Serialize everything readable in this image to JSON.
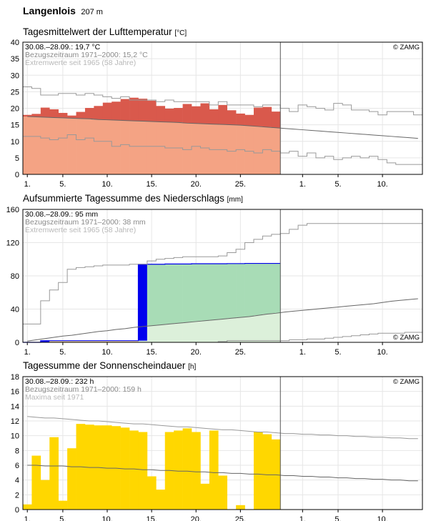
{
  "station": {
    "name": "Langenlois",
    "elevation": "207 m"
  },
  "attribution": "© ZAMG",
  "colors": {
    "temp_above_dark": "#d9594c",
    "temp_base_light": "#f4a384",
    "precip_bar": "#0000ee",
    "precip_green_dark": "#a8dcb6",
    "precip_green_light": "#dcf0da",
    "precip_yellow_light": "#faeaae",
    "precip_orange": "#f8b84a",
    "sun_bar": "#ffd700",
    "ref_line": "#666666",
    "extreme_line": "#999999"
  },
  "chart_data": [
    {
      "id": "temperature",
      "type": "area",
      "title": "Tagesmittelwert der Lufttemperatur",
      "unit": "[°C]",
      "info": [
        "30.08.–28.09.: 19,7 °C",
        "Bezugszeitraum 1971–2000: 15,2 °C",
        "Extremwerte seit 1965 (58 Jahre)"
      ],
      "ylim": [
        0,
        40
      ],
      "yticks": [
        0,
        5,
        10,
        15,
        20,
        25,
        30,
        35,
        40
      ],
      "xticks": [
        "1.",
        "5.",
        "10.",
        "15.",
        "20.",
        "25.",
        "1.",
        "5.",
        "10."
      ],
      "x_tick_days": [
        1,
        5,
        10,
        15,
        20,
        25,
        32,
        36,
        41
      ],
      "today_day": 29,
      "days_total": 45,
      "daily_mean": [
        18.0,
        18.3,
        20.2,
        19.7,
        18.6,
        17.8,
        18.9,
        20.1,
        20.7,
        21.7,
        22.0,
        22.8,
        23.2,
        22.9,
        22.3,
        20.7,
        19.9,
        20.1,
        21.3,
        20.6,
        21.5,
        19.7,
        21.0,
        19.4,
        18.4,
        18.0,
        20.2,
        20.4,
        19.0
      ],
      "reference_mean": [
        17.5,
        17.4,
        17.3,
        17.2,
        17.1,
        17.0,
        16.9,
        16.8,
        16.6,
        16.5,
        16.4,
        16.3,
        16.2,
        16.1,
        16.0,
        15.9,
        15.8,
        15.7,
        15.5,
        15.4,
        15.3,
        15.2,
        15.1,
        15.0,
        14.9,
        14.7,
        14.5,
        14.3,
        14.1,
        13.9,
        13.7,
        13.5,
        13.3,
        13.1,
        12.9,
        12.7,
        12.5,
        12.3,
        12.1,
        11.9,
        11.7,
        11.5,
        11.3,
        11.1,
        10.9
      ],
      "max_extreme": [
        26.5,
        26.0,
        24.0,
        24.0,
        24.5,
        24.5,
        24.0,
        24.5,
        24.0,
        23.5,
        23.0,
        23.5,
        22.5,
        22.5,
        22.5,
        22.0,
        22.5,
        22.0,
        22.0,
        22.0,
        22.0,
        21.0,
        22.0,
        21.0,
        21.0,
        21.0,
        20.5,
        21.0,
        21.0,
        20.0,
        19.0,
        21.0,
        20.5,
        20.0,
        19.5,
        21.5,
        21.0,
        19.5,
        19.5,
        19.0,
        18.0,
        19.0,
        19.0,
        19.0,
        18.0
      ],
      "min_extreme": [
        11.5,
        11.5,
        11.0,
        10.5,
        11.0,
        12.0,
        10.5,
        11.0,
        10.0,
        10.0,
        8.5,
        9.0,
        8.5,
        8.5,
        8.5,
        8.5,
        8.0,
        8.0,
        7.5,
        8.5,
        8.0,
        7.5,
        7.5,
        7.0,
        7.5,
        7.0,
        6.5,
        7.5,
        7.0,
        6.5,
        7.0,
        5.5,
        6.5,
        5.0,
        5.5,
        4.5,
        5.0,
        5.5,
        5.0,
        5.5,
        4.5,
        3.5,
        3.0,
        3.0,
        3.0
      ]
    },
    {
      "id": "precipitation",
      "type": "area",
      "title": "Aufsummierte Tagessumme des Niederschlags",
      "unit": "[mm]",
      "info": [
        "30.08.–28.09.: 95 mm",
        "Bezugszeitraum 1971–2000: 38 mm",
        "Extremwerte seit 1965 (58 Jahre)"
      ],
      "ylim": [
        0,
        160
      ],
      "yticks": [
        0,
        40,
        80,
        120,
        160
      ],
      "xticks": [
        "1.",
        "5.",
        "10.",
        "15.",
        "20.",
        "25.",
        "1.",
        "5.",
        "10."
      ],
      "x_tick_days": [
        1,
        5,
        10,
        15,
        20,
        25,
        32,
        36,
        41
      ],
      "today_day": 29,
      "days_total": 45,
      "cumulative_sum": [
        0,
        0,
        2.0,
        2.0,
        2.0,
        2.0,
        2.0,
        2.0,
        2.0,
        2.0,
        2.0,
        2.0,
        2.0,
        94.0,
        94.0,
        94.0,
        94.3,
        94.3,
        94.3,
        94.6,
        94.6,
        94.6,
        94.6,
        94.8,
        94.8,
        95.0,
        95.0,
        95.0,
        95.0
      ],
      "reference_sum": [
        1.5,
        3.0,
        4.5,
        6.0,
        7.5,
        8.5,
        10.0,
        11.5,
        13.0,
        14.0,
        15.5,
        16.5,
        18.0,
        19.0,
        20.0,
        21.0,
        22.0,
        23.0,
        24.0,
        25.0,
        26.0,
        27.0,
        28.0,
        29.0,
        30.0,
        31.0,
        32.5,
        34.0,
        35.0,
        36.5,
        37.5,
        38.5,
        39.5,
        40.5,
        41.5,
        42.5,
        43.5,
        44.5,
        45.5,
        46.5,
        48.0,
        49.5,
        50.5,
        51.5,
        52.5
      ],
      "max_extreme": [
        22,
        22,
        50,
        63,
        72,
        88,
        90,
        91,
        92,
        93,
        93,
        93,
        94,
        94,
        98,
        100,
        101,
        102,
        103,
        103,
        103,
        103,
        104,
        108,
        112,
        120,
        124,
        128,
        130,
        131,
        136,
        141,
        143,
        143,
        143,
        143,
        143,
        143,
        143,
        143,
        143,
        143,
        143,
        143,
        143
      ],
      "min_extreme": [
        0,
        0,
        0,
        0,
        0,
        0,
        0,
        0,
        0,
        0,
        0,
        0,
        0,
        0,
        0,
        0,
        0,
        0,
        0,
        0,
        0,
        0,
        1,
        2,
        2,
        2,
        2,
        2,
        2,
        2,
        3,
        3,
        4,
        4,
        5,
        6,
        7,
        8,
        9,
        10,
        11,
        11,
        11,
        12,
        12
      ]
    },
    {
      "id": "sunshine",
      "type": "bar",
      "title": "Tagessumme der Sonnenscheindauer",
      "unit": "[h]",
      "info": [
        "30.08.–28.09.: 232 h",
        "Bezugszeitraum 1971–2000: 159 h",
        "Maxima seit 1971"
      ],
      "ylim": [
        0,
        18
      ],
      "yticks": [
        0,
        2,
        4,
        6,
        8,
        10,
        12,
        14,
        16,
        18
      ],
      "xticks": [
        "1.",
        "5.",
        "10.",
        "15.",
        "20.",
        "25.",
        "1.",
        "5.",
        "10."
      ],
      "x_tick_days": [
        1,
        5,
        10,
        15,
        20,
        25,
        32,
        36,
        41
      ],
      "today_day": 29,
      "days_total": 45,
      "values": [
        0.7,
        7.3,
        4.0,
        9.8,
        1.2,
        8.3,
        11.6,
        11.5,
        11.4,
        11.4,
        11.3,
        11.1,
        10.7,
        10.5,
        4.5,
        2.7,
        10.5,
        10.7,
        11.0,
        10.5,
        3.5,
        10.7,
        4.6,
        0,
        0.6,
        0,
        10.5,
        10.2,
        9.5
      ],
      "reference_mean": [
        6.0,
        6.0,
        5.9,
        5.9,
        5.9,
        5.8,
        5.8,
        5.7,
        5.7,
        5.6,
        5.6,
        5.5,
        5.5,
        5.4,
        5.4,
        5.3,
        5.3,
        5.2,
        5.2,
        5.1,
        5.1,
        5.0,
        5.0,
        4.9,
        4.9,
        4.8,
        4.8,
        4.7,
        4.7,
        4.6,
        4.6,
        4.5,
        4.5,
        4.4,
        4.4,
        4.3,
        4.3,
        4.2,
        4.2,
        4.1,
        4.1,
        4.0,
        4.0,
        3.9,
        3.9
      ],
      "max_extreme": [
        12.6,
        12.5,
        12.4,
        12.4,
        12.3,
        12.2,
        12.1,
        12.0,
        12.0,
        11.9,
        11.8,
        11.7,
        11.6,
        11.6,
        11.5,
        11.4,
        11.3,
        11.2,
        11.2,
        11.1,
        11.0,
        10.9,
        10.8,
        10.8,
        10.7,
        10.6,
        10.5,
        10.5,
        10.4,
        10.3,
        10.3,
        10.2,
        10.2,
        10.1,
        10.1,
        10.0,
        10.0,
        9.9,
        9.9,
        9.8,
        9.8,
        9.7,
        9.7,
        9.6,
        9.6
      ]
    }
  ]
}
